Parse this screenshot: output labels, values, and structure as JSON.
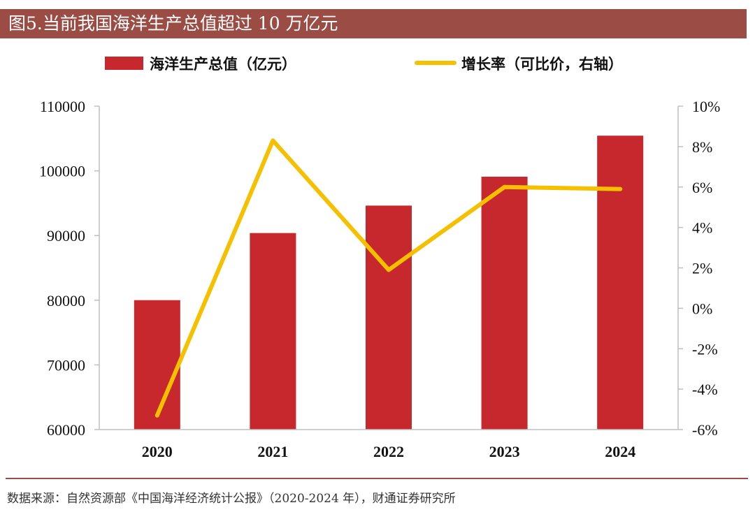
{
  "title": "图5.当前我国海洋生产总值超过 10 万亿元",
  "source": "数据来源：自然资源部《中国海洋经济统计公报》（2020-2024 年），财通证券研究所",
  "colors": {
    "bar": "#c6282d",
    "line": "#f5c000",
    "title_bg": "#9b4c44",
    "axis": "#bfbfbf"
  },
  "chart_data": {
    "type": "bar+line",
    "categories": [
      "2020",
      "2021",
      "2022",
      "2023",
      "2024"
    ],
    "series": [
      {
        "name": "海洋生产总值（亿元）",
        "type": "bar",
        "axis": "left",
        "values": [
          80010,
          90385,
          94628,
          99097,
          105438
        ]
      },
      {
        "name": "增长率（可比价，右轴）",
        "type": "line",
        "axis": "right",
        "values": [
          -5.3,
          8.3,
          1.9,
          6.0,
          5.9
        ]
      }
    ],
    "left_axis": {
      "min": 60000,
      "max": 110000,
      "step": 10000,
      "ticks": [
        "60000",
        "70000",
        "80000",
        "90000",
        "100000",
        "110000"
      ]
    },
    "right_axis": {
      "min": -6,
      "max": 10,
      "step": 2,
      "ticks": [
        "-6%",
        "-4%",
        "-2%",
        "0%",
        "2%",
        "4%",
        "6%",
        "8%",
        "10%"
      ]
    },
    "grid": false,
    "legend_position": "top"
  }
}
